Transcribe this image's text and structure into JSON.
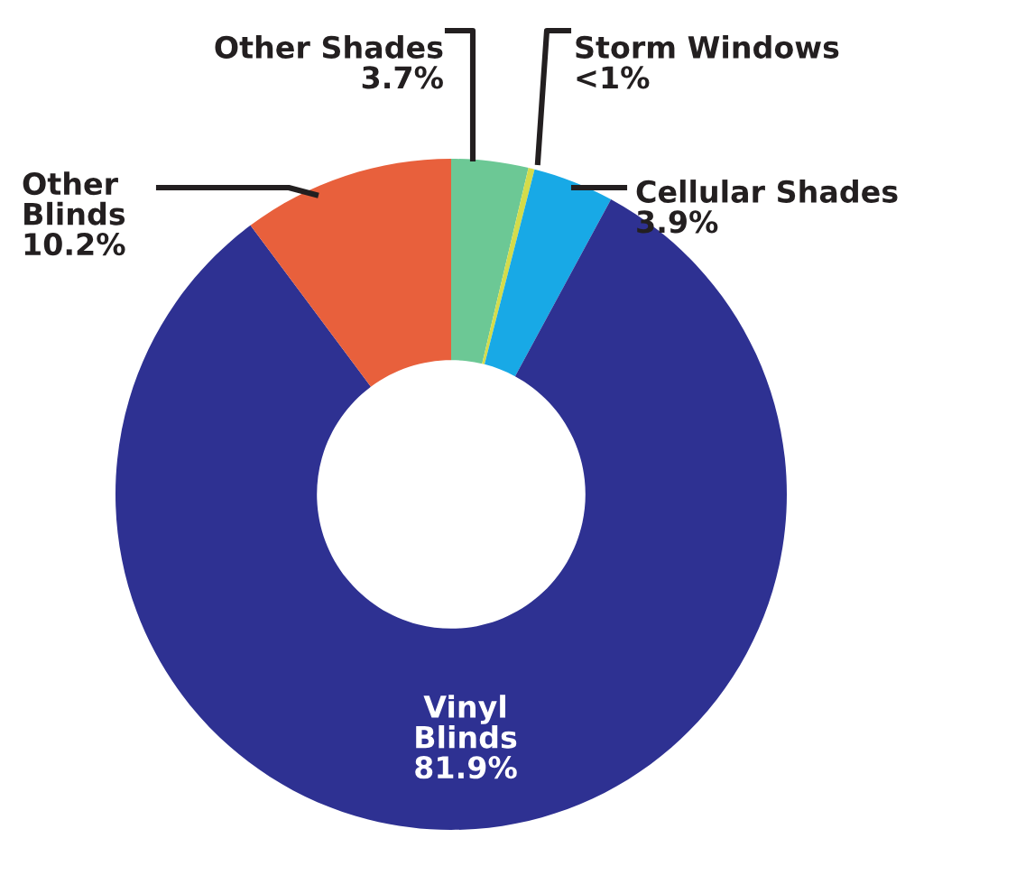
{
  "chart_data": {
    "type": "donut",
    "categories": [
      "Other Shades",
      "Storm Windows",
      "Cellular Shades",
      "Vinyl\nBlinds",
      "Other\nBlinds"
    ],
    "values": [
      3.7,
      0.3,
      3.9,
      81.9,
      10.2
    ],
    "value_labels": [
      "3.7%",
      "<1%",
      "3.9%",
      "81.9%",
      "10.2%"
    ],
    "colors": [
      "#6cc895",
      "#d4dc4a",
      "#18a9e6",
      "#2e3192",
      "#e8603c"
    ],
    "legend": false
  }
}
